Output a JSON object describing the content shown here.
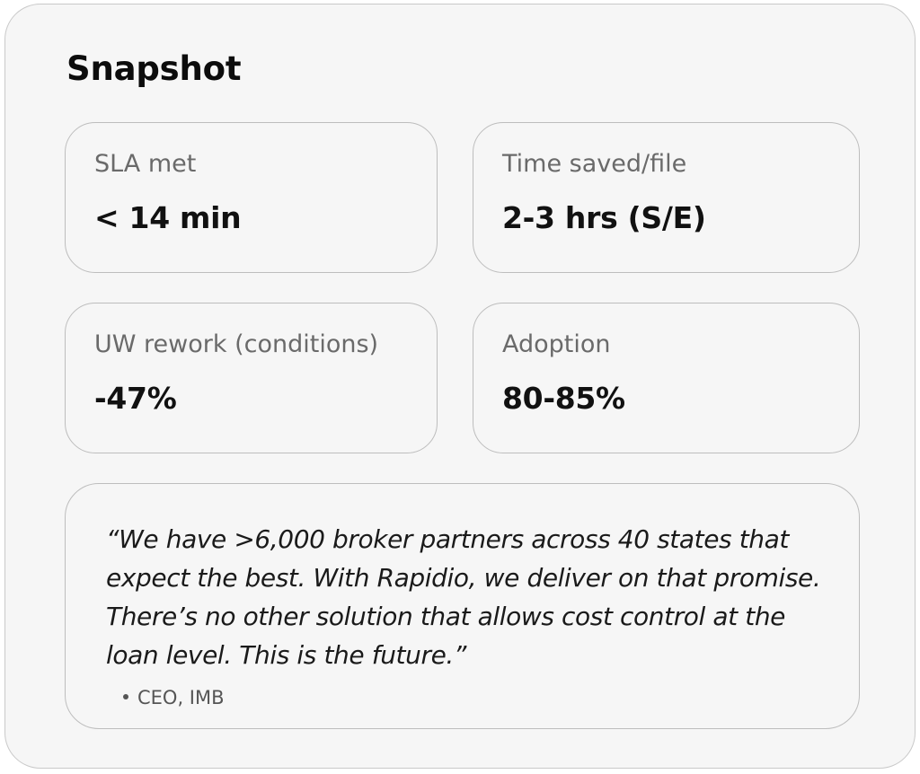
{
  "snapshot": {
    "title": "Snapshot",
    "stats": [
      {
        "label": "SLA met",
        "value": "< 14 min"
      },
      {
        "label": "Time saved/file",
        "value": "2-3 hrs (S/E)"
      },
      {
        "label": "UW rework (conditions)",
        "value": "-47%"
      },
      {
        "label": "Adoption",
        "value": "80-85%"
      }
    ],
    "quote": {
      "text": "“We have >6,000 broker partners across 40 states that expect the best. With Rapidio, we deliver on that promise. There’s no other solution that allows cost control at the loan level. This is the future.”",
      "attribution": "CEO, IMB"
    }
  }
}
